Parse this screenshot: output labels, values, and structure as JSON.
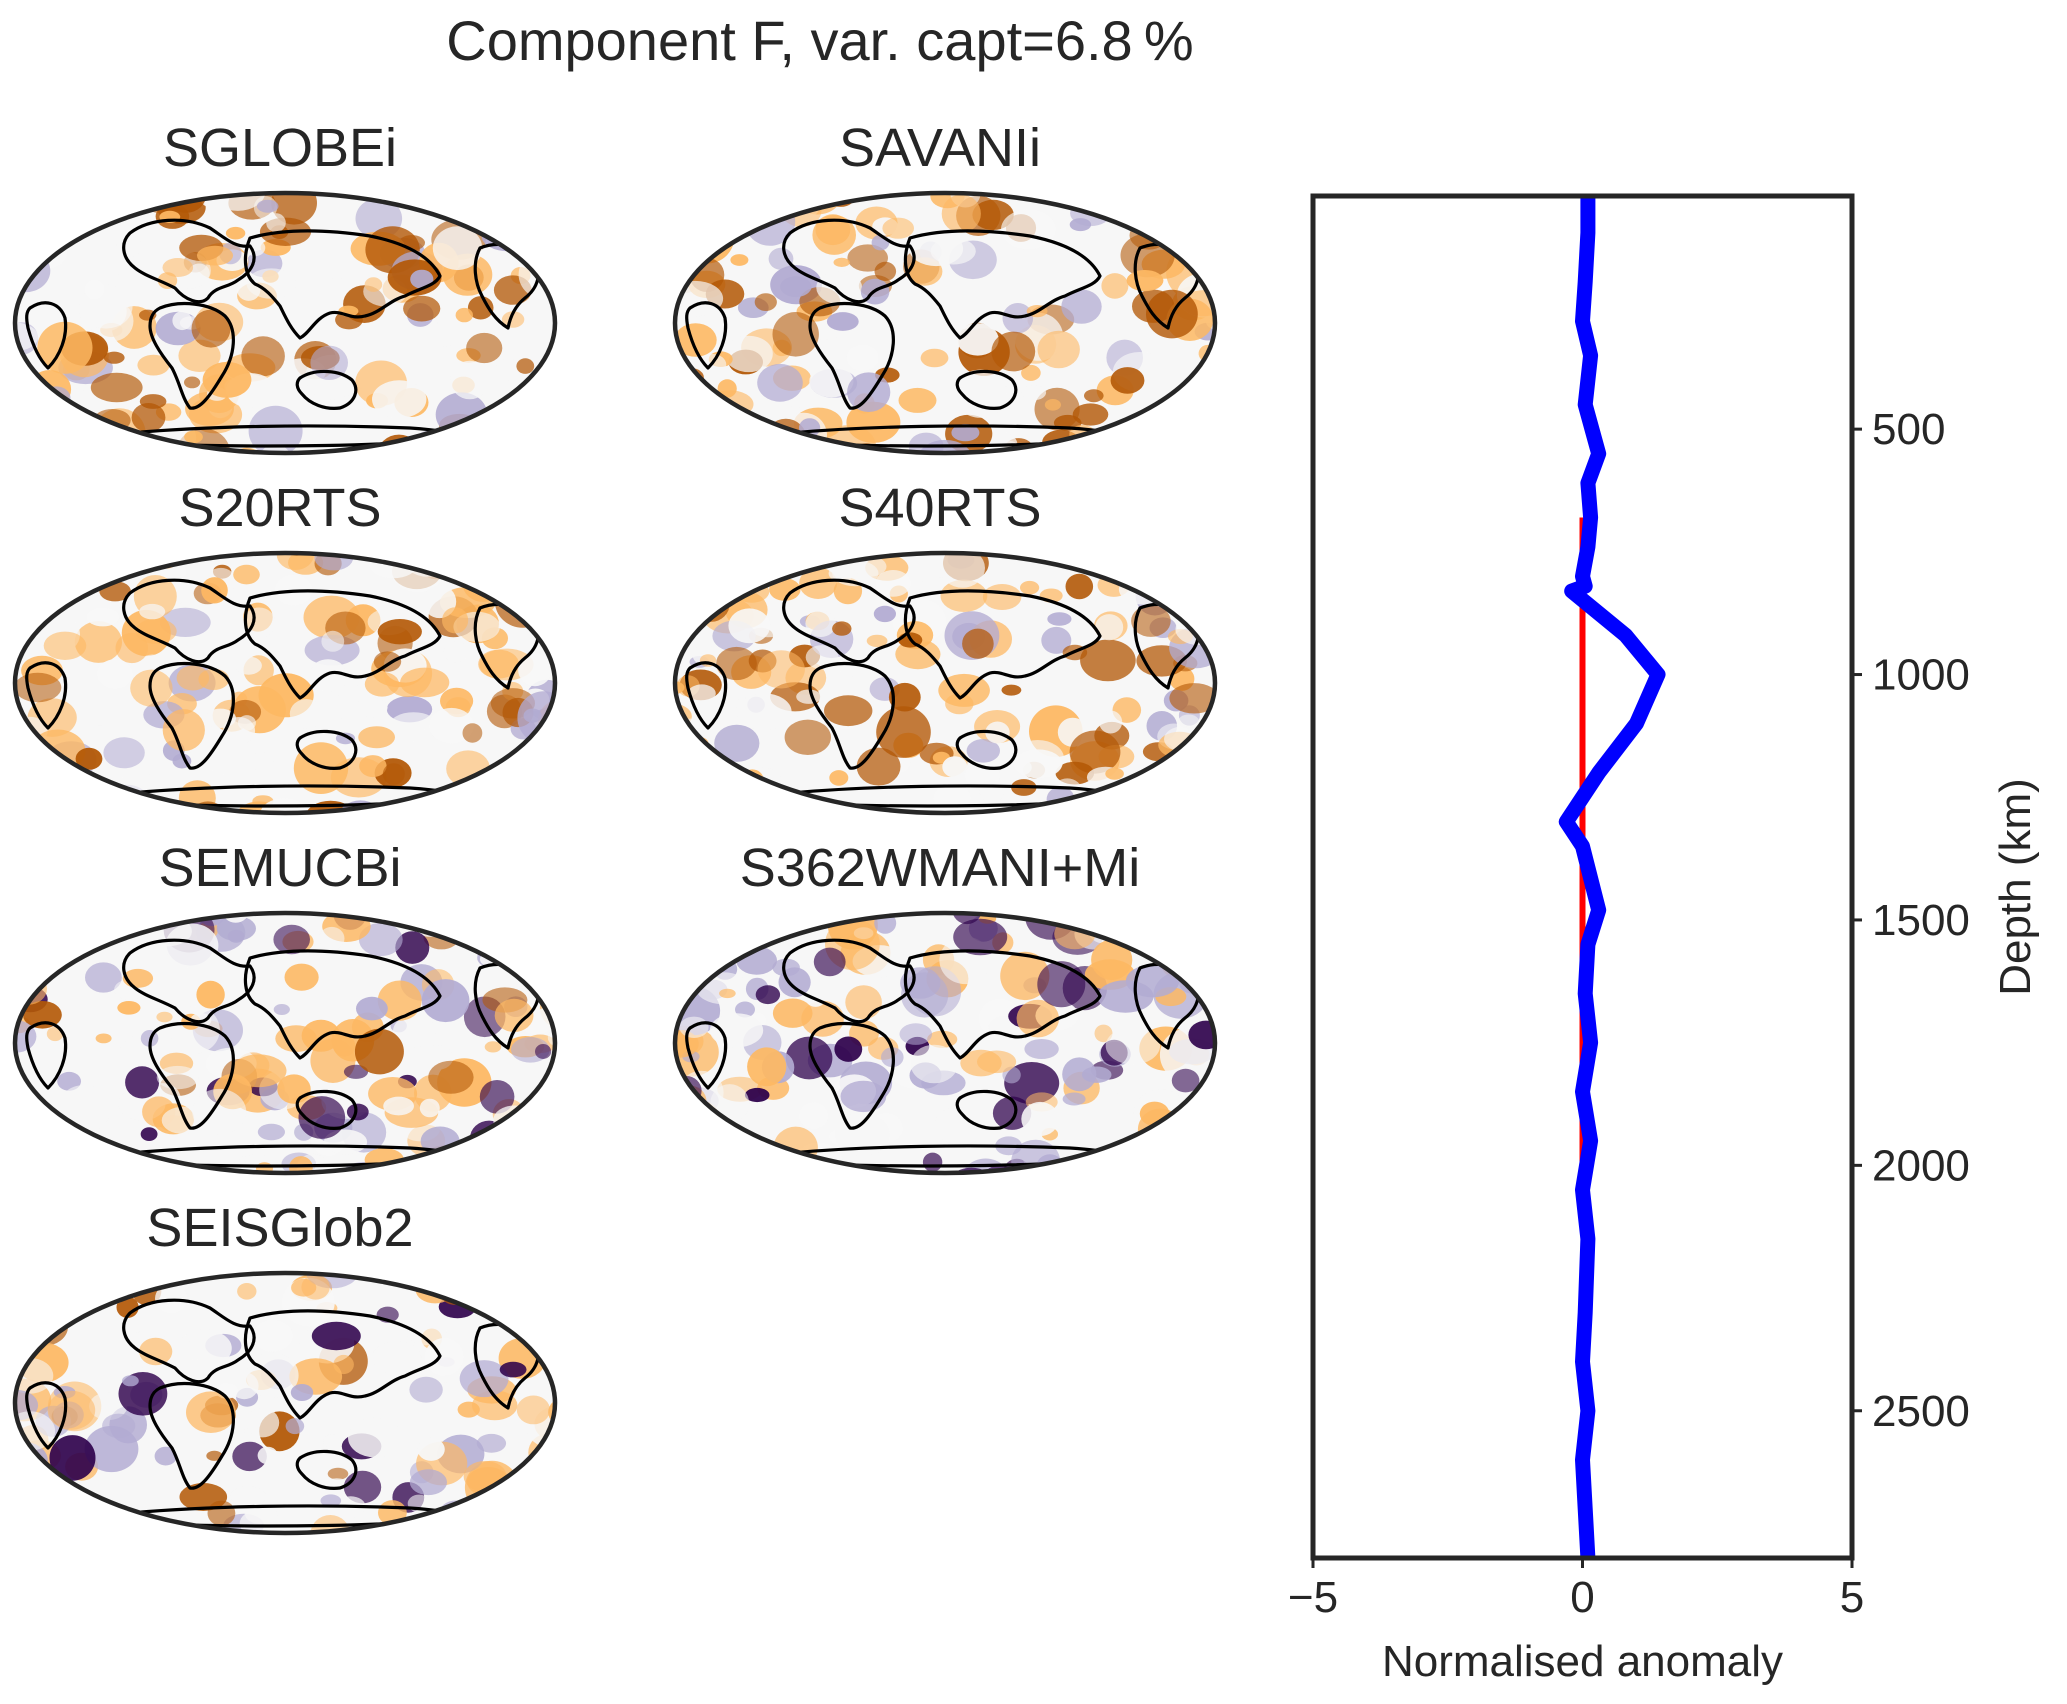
{
  "figure": {
    "title": "Component F, var. capt=6.8 %"
  },
  "maps": [
    {
      "name": "SGLOBEi"
    },
    {
      "name": "SAVANIi"
    },
    {
      "name": "S20RTS"
    },
    {
      "name": "S40RTS"
    },
    {
      "name": "SEMUCBi"
    },
    {
      "name": "S362WMANI+Mi"
    },
    {
      "name": "SEISGlob2"
    }
  ],
  "colors": {
    "positive": "#b35806",
    "positive_light": "#fdb863",
    "neutral": "#f7f7f7",
    "negative_light": "#b2abd2",
    "negative": "#2d004b",
    "coastline": "#000000",
    "profile_line": "#0000ff",
    "zero_line": "#ff0000",
    "axis": "#262626"
  },
  "chart_data": {
    "type": "line",
    "xlabel": "Normalised anomaly",
    "ylabel": "Depth (km)",
    "xlim": [
      -5,
      5
    ],
    "ylim": [
      2800,
      25
    ],
    "xticks": [
      -5,
      0,
      5
    ],
    "xtick_labels": [
      "−5",
      "0",
      "5"
    ],
    "yticks": [
      500,
      1000,
      1500,
      2000,
      2500
    ],
    "ytick_labels": [
      "500",
      "1000",
      "1500",
      "2000",
      "2500"
    ],
    "y_axis_position": "right",
    "grid": false,
    "series": [
      {
        "color": "#0000ff",
        "x": [
          0.1,
          0.1,
          0.05,
          0.0,
          0.15,
          0.05,
          0.3,
          0.1,
          0.15,
          0.1,
          0.0,
          0.05,
          -0.2,
          -0.2,
          0.8,
          1.4,
          1.0,
          0.3,
          -0.3,
          0.0,
          0.3,
          0.1,
          0.05,
          0.15,
          0.0,
          0.15,
          0.0,
          0.1,
          0.05,
          0.0,
          0.1,
          0.0,
          0.05,
          0.1
        ],
        "y": [
          25,
          100,
          200,
          280,
          350,
          450,
          550,
          610,
          680,
          740,
          800,
          820,
          830,
          830,
          920,
          1000,
          1100,
          1200,
          1300,
          1350,
          1480,
          1550,
          1650,
          1750,
          1850,
          1950,
          2050,
          2150,
          2300,
          2400,
          2500,
          2600,
          2700,
          2800
        ]
      },
      {
        "color": "#ff0000",
        "x": [
          0,
          0
        ],
        "y": [
          680,
          2000
        ]
      }
    ]
  }
}
